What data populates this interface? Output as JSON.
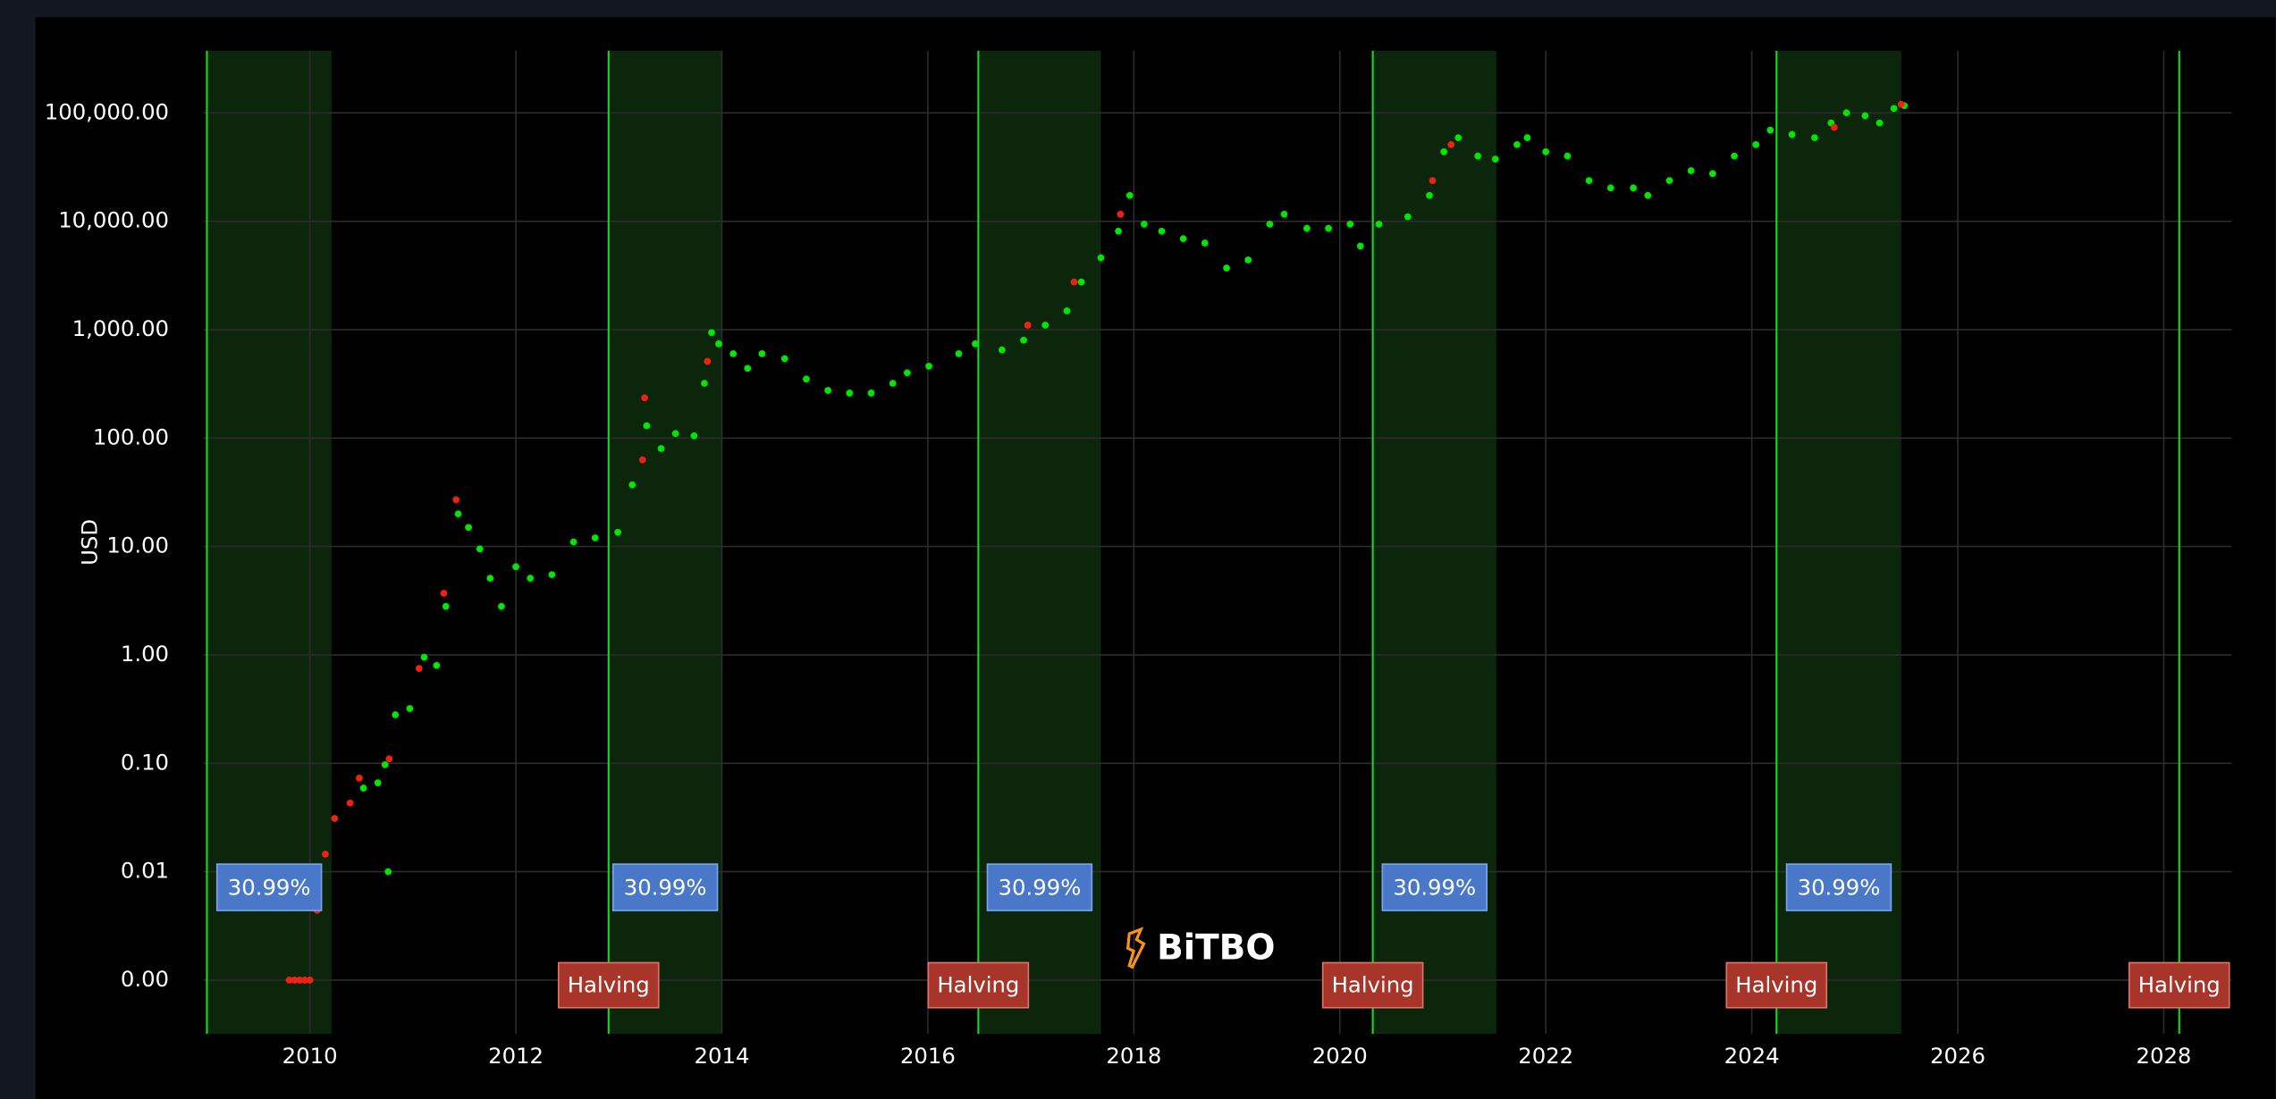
{
  "chart_data": {
    "type": "scatter",
    "y_label": "USD",
    "watermark": "BiTBO",
    "log_y": true,
    "grid": true,
    "xlim": [
      2008.97,
      2028.66
    ],
    "ylim": [
      0.00032,
      374000
    ],
    "xticks": [
      2010,
      2012,
      2014,
      2016,
      2018,
      2020,
      2022,
      2024,
      2026,
      2028
    ],
    "yticks": [
      {
        "value": 0.001,
        "label": "0.00"
      },
      {
        "value": 0.01,
        "label": "0.01"
      },
      {
        "value": 0.1,
        "label": "0.10"
      },
      {
        "value": 1,
        "label": "1.00"
      },
      {
        "value": 10,
        "label": "10.00"
      },
      {
        "value": 100,
        "label": "100.00"
      },
      {
        "value": 1000,
        "label": "1,000.00"
      },
      {
        "value": 10000,
        "label": "10,000.00"
      },
      {
        "value": 100000,
        "label": "100,000.00"
      }
    ],
    "vlines": [
      2009.0,
      2012.9,
      2016.49,
      2020.32,
      2024.24,
      2028.15
    ],
    "vline_color": "#1ed41e",
    "regions": [
      {
        "start": 2009.0,
        "end": 2010.21,
        "label": "30.99%"
      },
      {
        "start": 2012.9,
        "end": 2014.0,
        "label": "30.99%"
      },
      {
        "start": 2016.49,
        "end": 2017.68,
        "label": "30.99%"
      },
      {
        "start": 2020.32,
        "end": 2021.52,
        "label": "30.99%"
      },
      {
        "start": 2024.24,
        "end": 2025.45,
        "label": "30.99%"
      }
    ],
    "region_color": "#0c260c",
    "halvings": [
      {
        "x": 2012.9,
        "label": "Halving"
      },
      {
        "x": 2016.49,
        "label": "Halving"
      },
      {
        "x": 2020.32,
        "label": "Halving"
      },
      {
        "x": 2024.24,
        "label": "Halving"
      },
      {
        "x": 2028.15,
        "label": "Halving"
      }
    ],
    "series": [
      {
        "color": "#00e600",
        "x": [
          2010.52,
          2010.66,
          2010.73,
          2010.76,
          2010.83,
          2010.97,
          2011.11,
          2011.23,
          2011.32,
          2011.44,
          2011.54,
          2011.65,
          2011.75,
          2011.86,
          2012.0,
          2012.14,
          2012.35,
          2012.56,
          2012.77,
          2012.99,
          2013.13,
          2013.27,
          2013.41,
          2013.55,
          2013.73,
          2013.83,
          2013.9,
          2013.97,
          2014.11,
          2014.25,
          2014.39,
          2014.61,
          2014.82,
          2015.03,
          2015.24,
          2015.45,
          2015.66,
          2015.8,
          2016.01,
          2016.3,
          2016.46,
          2016.72,
          2016.93,
          2017.14,
          2017.35,
          2017.49,
          2017.68,
          2017.85,
          2017.96,
          2018.1,
          2018.27,
          2018.48,
          2018.69,
          2018.9,
          2019.11,
          2019.32,
          2019.46,
          2019.68,
          2019.89,
          2020.1,
          2020.2,
          2020.38,
          2020.66,
          2020.87,
          2021.01,
          2021.15,
          2021.34,
          2021.51,
          2021.72,
          2021.82,
          2022.0,
          2022.21,
          2022.42,
          2022.63,
          2022.85,
          2022.99,
          2023.2,
          2023.41,
          2023.62,
          2023.83,
          2024.04,
          2024.18,
          2024.39,
          2024.61,
          2024.77,
          2024.92,
          2025.1,
          2025.24,
          2025.38,
          2025.48
        ],
        "values": [
          0.059,
          0.066,
          0.097,
          0.01,
          0.28,
          0.32,
          0.95,
          0.8,
          2.8,
          20,
          15,
          9.5,
          5.1,
          2.8,
          6.5,
          5.1,
          5.5,
          11,
          12,
          13.5,
          37,
          130,
          80,
          110,
          105,
          320,
          940,
          740,
          600,
          440,
          600,
          540,
          350,
          275,
          260,
          260,
          320,
          400,
          460,
          600,
          740,
          650,
          800,
          1100,
          1490,
          2750,
          4600,
          8100,
          17300,
          9400,
          8100,
          6900,
          6300,
          3700,
          4400,
          9400,
          11600,
          8600,
          8600,
          9400,
          5900,
          9400,
          11000,
          17300,
          43700,
          59000,
          40000,
          37400,
          50900,
          59000,
          43700,
          40000,
          23700,
          20300,
          20300,
          17300,
          23700,
          29300,
          27500,
          40000,
          50900,
          69200,
          63100,
          59000,
          80700,
          100000,
          94000,
          80700,
          109700,
          116600
        ]
      },
      {
        "color": "#ee2210",
        "x": [
          2009.8,
          2009.85,
          2009.9,
          2009.95,
          2010.0,
          2010.07,
          2010.15,
          2010.24,
          2010.39,
          2010.48,
          2010.77,
          2011.06,
          2011.3,
          2011.42,
          2013.23,
          2013.25,
          2013.86,
          2016.97,
          2017.42,
          2017.87,
          2020.9,
          2021.08,
          2024.8,
          2025.45
        ],
        "values": [
          0.001,
          0.001,
          0.001,
          0.001,
          0.001,
          0.0044,
          0.0145,
          0.031,
          0.043,
          0.073,
          0.11,
          0.75,
          3.7,
          27,
          63,
          235,
          510,
          1100,
          2750,
          11600,
          23700,
          50900,
          73600,
          120000
        ]
      }
    ]
  }
}
